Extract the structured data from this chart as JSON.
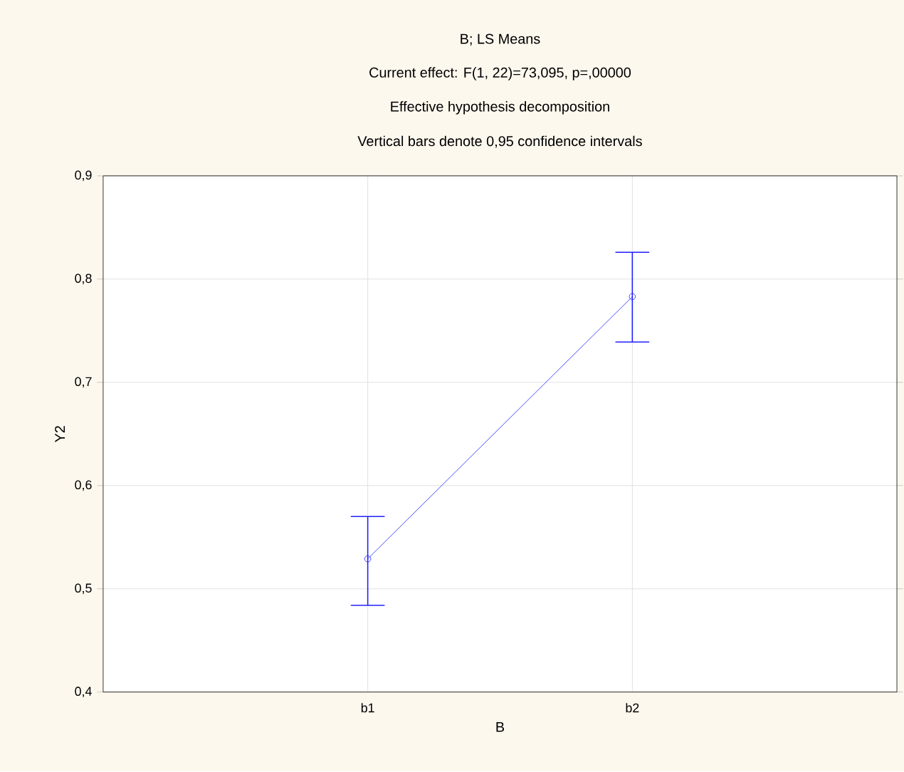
{
  "chart_data": {
    "type": "line",
    "title": "B; LS Means",
    "subtitle": "Current effect: F(1, 22)=73,095, p=,00000",
    "annotations": [
      "Effective hypothesis decomposition",
      "Vertical bars denote 0,95 confidence intervals"
    ],
    "xlabel": "B",
    "ylabel": "Y2",
    "categories": [
      "b1",
      "b2"
    ],
    "series": [
      {
        "color": "#2020ff",
        "values": [
          0.529,
          0.783
        ],
        "errors": [
          [
            0.484,
            0.57
          ],
          [
            0.739,
            0.826
          ]
        ]
      }
    ],
    "ylim": [
      0.4,
      0.9
    ],
    "yticks": [
      {
        "value": 0.4,
        "label": "0,4"
      },
      {
        "value": 0.5,
        "label": "0,5"
      },
      {
        "value": 0.6,
        "label": "0,6"
      },
      {
        "value": 0.7,
        "label": "0,7"
      },
      {
        "value": 0.8,
        "label": "0,8"
      },
      {
        "value": 0.9,
        "label": "0,9"
      }
    ],
    "grid": true,
    "marker": "circle",
    "line_style": "solid"
  }
}
